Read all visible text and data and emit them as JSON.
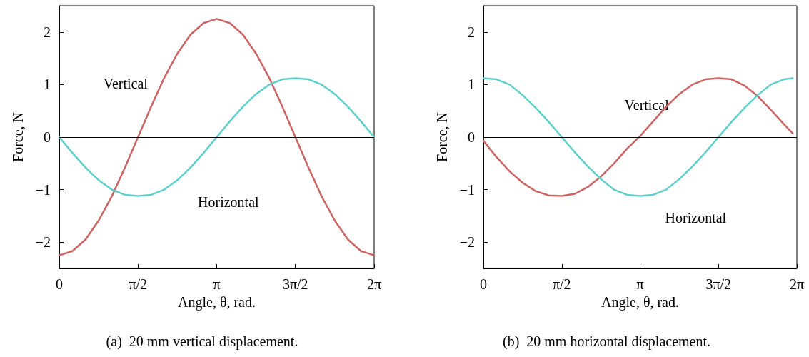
{
  "chart_data": [
    {
      "type": "line",
      "xlabel": "Angle, θ, rad.",
      "ylabel": "Force, N",
      "xlim": [
        0,
        6.283
      ],
      "ylim": [
        -2.5,
        2.5
      ],
      "xticks": [
        0,
        {
          "value": 1.571,
          "label": "π/2"
        },
        {
          "value": 3.142,
          "label": "π"
        },
        {
          "value": 4.712,
          "label": "3π/2"
        },
        {
          "value": 6.283,
          "label": "2π"
        }
      ],
      "yticks": [
        -2,
        -1,
        0,
        1,
        2
      ],
      "x": [
        0,
        0.262,
        0.524,
        0.785,
        1.047,
        1.309,
        1.571,
        1.833,
        2.094,
        2.356,
        2.618,
        2.88,
        3.142,
        3.403,
        3.665,
        3.927,
        4.189,
        4.451,
        4.712,
        4.974,
        5.236,
        5.498,
        5.76,
        6.021,
        6.283
      ],
      "series": [
        {
          "name": "Vertical",
          "color": "#cd6464",
          "values": [
            -2.25,
            -2.17,
            -1.95,
            -1.59,
            -1.13,
            -0.58,
            0,
            0.58,
            1.13,
            1.59,
            1.95,
            2.17,
            2.25,
            2.17,
            1.95,
            1.59,
            1.13,
            0.58,
            0,
            -0.58,
            -1.13,
            -1.59,
            -1.95,
            -2.17,
            -2.25
          ]
        },
        {
          "name": "Horizontal",
          "color": "#5fcfcb",
          "values": [
            0,
            -0.3,
            -0.58,
            -0.82,
            -1.0,
            -1.1,
            -1.12,
            -1.1,
            -1.0,
            -0.82,
            -0.58,
            -0.3,
            0,
            0.3,
            0.58,
            0.82,
            1.0,
            1.1,
            1.12,
            1.1,
            1.0,
            0.82,
            0.58,
            0.3,
            0
          ]
        }
      ],
      "ref_lines": [
        {
          "axis": "y",
          "value": 0,
          "color": "#000000"
        }
      ],
      "marker": "none",
      "line_style": "solid",
      "grid": false,
      "legend": false,
      "annotations": [
        "(a)  20 mm vertical displacement."
      ]
    },
    {
      "type": "line",
      "xlabel": "Angle, θ, rad.",
      "ylabel": "Force, N",
      "xlim": [
        0,
        6.283
      ],
      "ylim": [
        -2.5,
        2.5
      ],
      "xticks": [
        0,
        {
          "value": 1.571,
          "label": "π/2"
        },
        {
          "value": 3.142,
          "label": "π"
        },
        {
          "value": 4.712,
          "label": "3π/2"
        },
        {
          "value": 6.283,
          "label": "2π"
        }
      ],
      "yticks": [
        -2,
        -1,
        0,
        1,
        2
      ],
      "x": [
        0,
        0.262,
        0.524,
        0.785,
        1.047,
        1.309,
        1.571,
        1.833,
        2.094,
        2.356,
        2.618,
        2.88,
        3.142,
        3.403,
        3.665,
        3.927,
        4.189,
        4.451,
        4.712,
        4.974,
        5.236,
        5.498,
        5.76,
        6.021,
        6.2
      ],
      "series": [
        {
          "name": "Vertical",
          "color": "#cd6464",
          "values": [
            -0.07,
            -0.38,
            -0.65,
            -0.87,
            -1.03,
            -1.11,
            -1.12,
            -1.08,
            -0.95,
            -0.75,
            -0.5,
            -0.22,
            0.02,
            0.3,
            0.58,
            0.82,
            1.0,
            1.1,
            1.12,
            1.1,
            0.98,
            0.78,
            0.52,
            0.25,
            0.07
          ]
        },
        {
          "name": "Horizontal",
          "color": "#5fcfcb",
          "values": [
            1.12,
            1.1,
            1.0,
            0.8,
            0.56,
            0.29,
            0,
            -0.29,
            -0.56,
            -0.8,
            -1.0,
            -1.1,
            -1.12,
            -1.1,
            -1.0,
            -0.8,
            -0.56,
            -0.29,
            0,
            0.29,
            0.56,
            0.8,
            1.0,
            1.1,
            1.12
          ]
        }
      ],
      "ref_lines": [
        {
          "axis": "y",
          "value": 0,
          "color": "#000000"
        }
      ],
      "marker": "none",
      "line_style": "solid",
      "grid": false,
      "legend": false,
      "annotations": [
        "(b)  20 mm horizontal displacement."
      ]
    }
  ]
}
